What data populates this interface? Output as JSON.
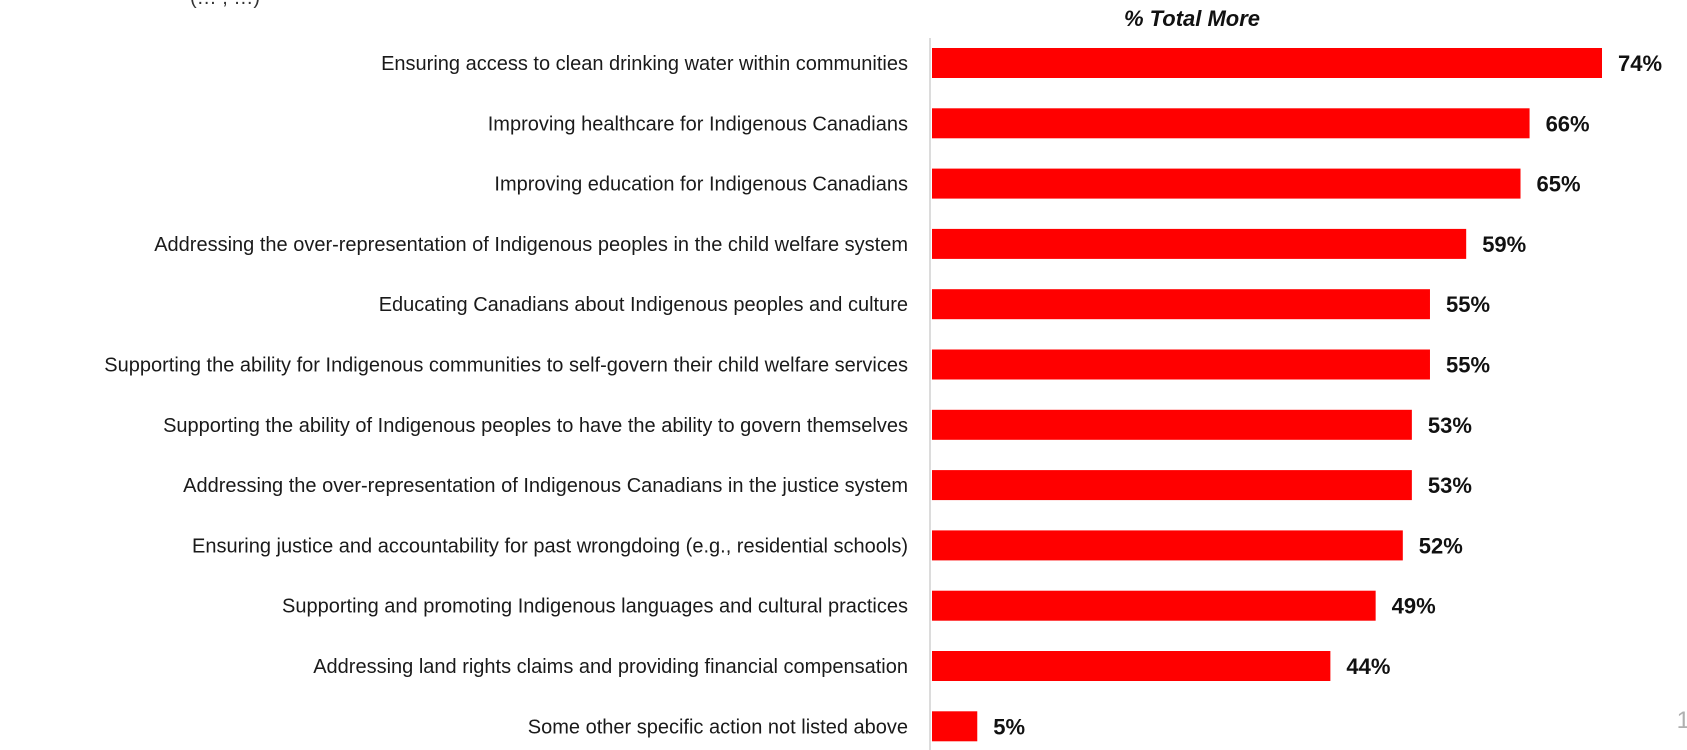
{
  "page_number": "1",
  "top_fragment": "(… , …)",
  "chart_data": {
    "type": "bar",
    "orientation": "horizontal",
    "title": "% Total More",
    "categories": [
      "Ensuring access to clean drinking water within communities",
      "Improving healthcare for Indigenous Canadians",
      "Improving education for Indigenous Canadians",
      "Addressing the over-representation of Indigenous peoples in the child welfare system",
      "Educating Canadians about Indigenous peoples and culture",
      "Supporting the ability for Indigenous communities to self-govern their child welfare services",
      "Supporting the ability of Indigenous peoples to have the ability to govern themselves",
      "Addressing the over-representation of Indigenous Canadians in the justice system",
      "Ensuring justice and accountability for past wrongdoing (e.g., residential schools)",
      "Supporting and promoting Indigenous languages and cultural practices",
      "Addressing land rights claims and providing financial compensation",
      "Some other specific action not listed above"
    ],
    "values": [
      74,
      66,
      65,
      59,
      55,
      55,
      53,
      53,
      52,
      49,
      44,
      5
    ],
    "value_labels": [
      "74%",
      "66%",
      "65%",
      "59%",
      "55%",
      "55%",
      "53%",
      "53%",
      "52%",
      "49%",
      "44%",
      "5%"
    ],
    "xlim": [
      0,
      74
    ],
    "bar_color": "#ff0000",
    "grid": false,
    "legend": "none"
  }
}
